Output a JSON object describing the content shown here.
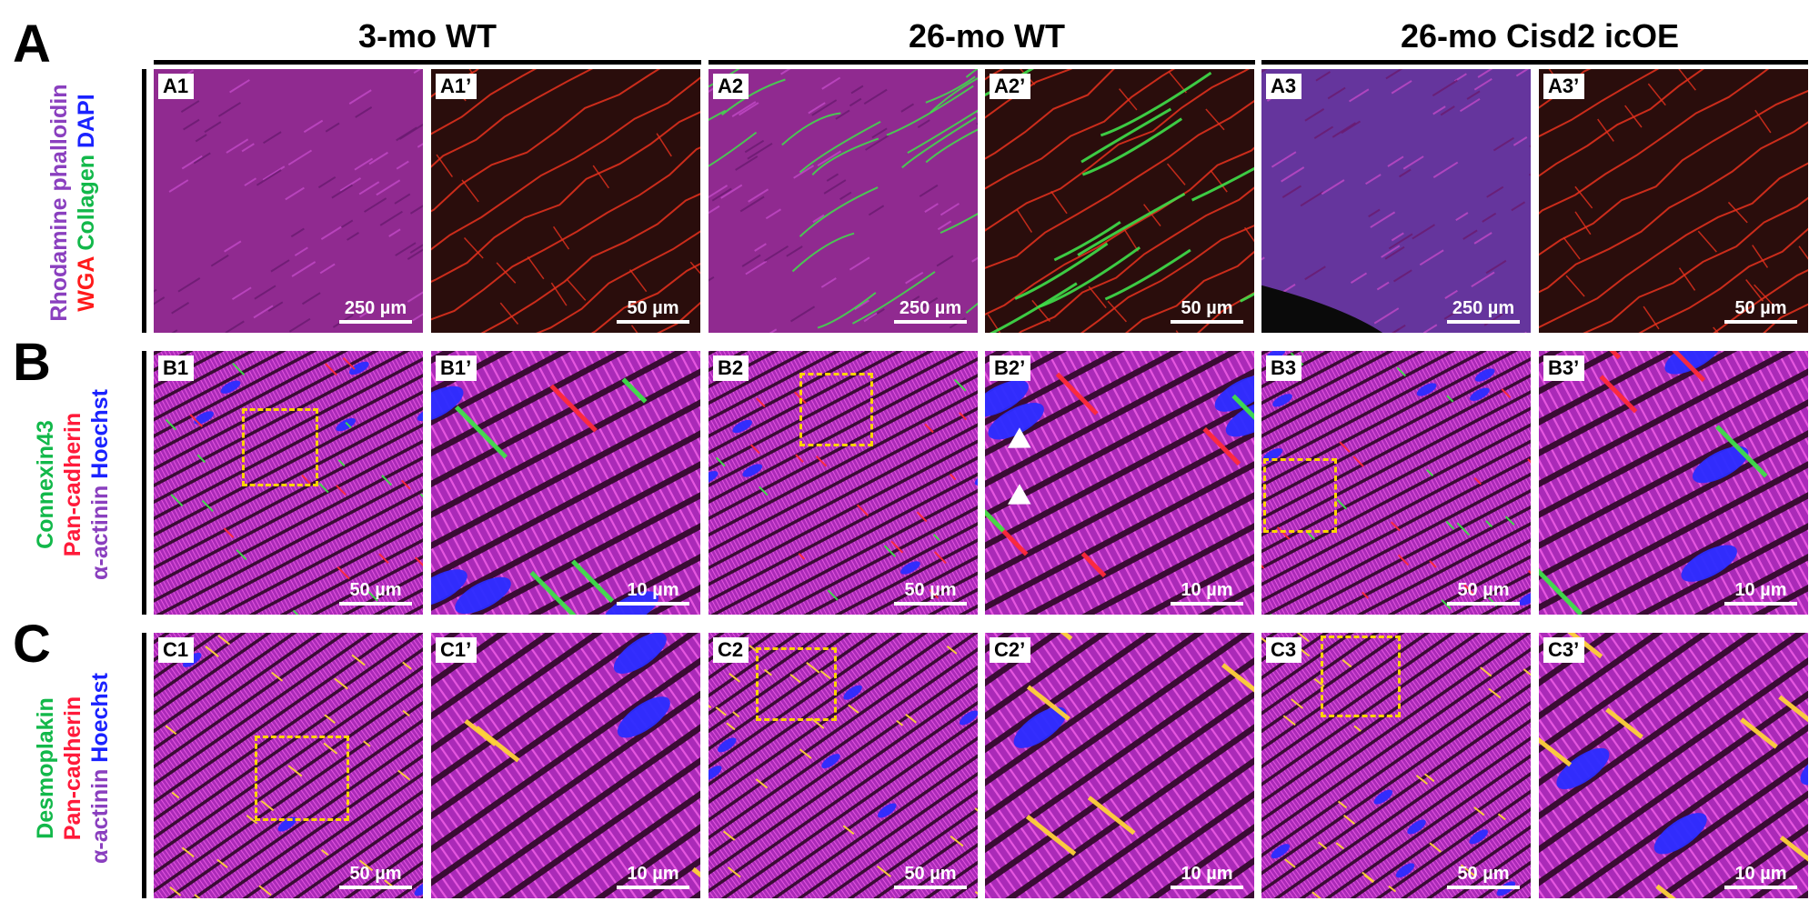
{
  "row_letters": [
    "A",
    "B",
    "C"
  ],
  "groups": [
    "3-mo WT",
    "26-mo WT",
    "26-mo Cisd2 icOE"
  ],
  "row_labels": {
    "A": [
      {
        "text": "Rhodamine phalloidin",
        "color": "#8a3fbf"
      },
      {
        "parts": [
          {
            "text": "WGA",
            "color": "#ff1a1a"
          },
          {
            "text": " ",
            "color": "#000000"
          },
          {
            "text": "Collagen",
            "color": "#12b84a"
          },
          {
            "text": " ",
            "color": "#000000"
          },
          {
            "text": "DAPI",
            "color": "#1a22ff"
          }
        ]
      }
    ],
    "B": [
      {
        "text": "Connexin43",
        "color": "#12b84a"
      },
      {
        "text": "Pan-cadherin",
        "color": "#ff1a3a"
      },
      {
        "parts": [
          {
            "text": "α-actinin",
            "color": "#8a3fbf"
          },
          {
            "text": " ",
            "color": "#000000"
          },
          {
            "text": "Hoechst",
            "color": "#1a22ff"
          }
        ]
      }
    ],
    "C": [
      {
        "text": "Desmoplakin",
        "color": "#12b84a"
      },
      {
        "text": "Pan-cadherin",
        "color": "#ff1a3a"
      },
      {
        "parts": [
          {
            "text": "α-actinin",
            "color": "#8a3fbf"
          },
          {
            "text": " ",
            "color": "#000000"
          },
          {
            "text": "Hoechst",
            "color": "#1a22ff"
          }
        ]
      }
    ]
  },
  "panels": [
    {
      "tag": "A1",
      "scale": "250 µm",
      "style": "A-low"
    },
    {
      "tag": "A1’",
      "scale": "50 µm",
      "style": "A-high"
    },
    {
      "tag": "A2",
      "scale": "250 µm",
      "style": "A-low-collagen"
    },
    {
      "tag": "A2’",
      "scale": "50 µm",
      "style": "A-high-collagen"
    },
    {
      "tag": "A3",
      "scale": "250 µm",
      "style": "A-low-dapi"
    },
    {
      "tag": "A3’",
      "scale": "50 µm",
      "style": "A-high"
    },
    {
      "tag": "B1",
      "scale": "50 µm",
      "style": "B-low",
      "roi": true
    },
    {
      "tag": "B1’",
      "scale": "10 µm",
      "style": "B-high"
    },
    {
      "tag": "B2",
      "scale": "50 µm",
      "style": "B-low",
      "roi": true
    },
    {
      "tag": "B2’",
      "scale": "10 µm",
      "style": "B-high",
      "arrowheads": 2
    },
    {
      "tag": "B3",
      "scale": "50 µm",
      "style": "B-low",
      "roi": true
    },
    {
      "tag": "B3’",
      "scale": "10 µm",
      "style": "B-high"
    },
    {
      "tag": "C1",
      "scale": "50 µm",
      "style": "C-low",
      "roi": true
    },
    {
      "tag": "C1’",
      "scale": "10 µm",
      "style": "C-high"
    },
    {
      "tag": "C2",
      "scale": "50 µm",
      "style": "C-low",
      "roi": true
    },
    {
      "tag": "C2’",
      "scale": "10 µm",
      "style": "C-high"
    },
    {
      "tag": "C3",
      "scale": "50 µm",
      "style": "C-low",
      "roi": true
    },
    {
      "tag": "C3’",
      "scale": "10 µm",
      "style": "C-high"
    }
  ],
  "colors": {
    "tissue_magenta": "#b02cc0",
    "wga_red": "#e8321e",
    "collagen_green": "#3fe04a",
    "nuclei_blue": "#2a2cff",
    "cadherin_red": "#ff2a3a",
    "junction_yellow": "#ffd23a",
    "roi_yellow": "#ffd400"
  }
}
